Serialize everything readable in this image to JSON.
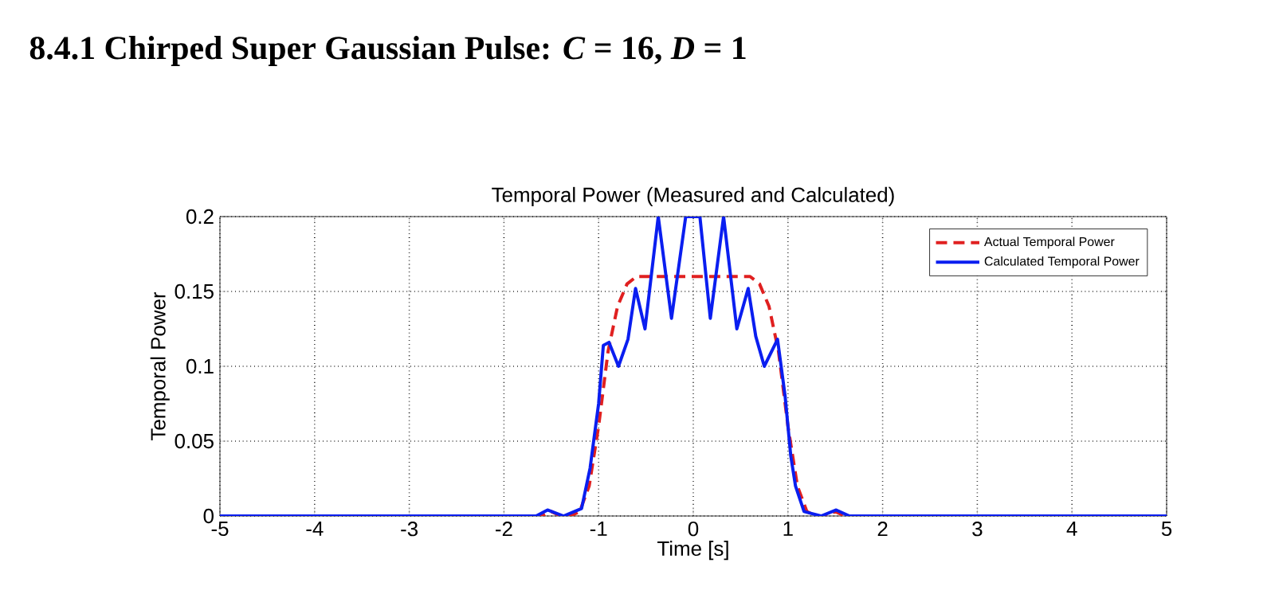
{
  "chart_data": {
    "type": "line",
    "title": "8.4.1 Chirped Super Gaussian Pulse: *C* = 16, *D* = 1",
    "subtitle": "Temporal Power (Measured and Calculated)",
    "xlabel": "Time [s]",
    "ylabel": "Temporal Power",
    "xlim": [
      -5,
      5
    ],
    "xticks": [
      -5,
      -4,
      -3,
      -2,
      -1,
      0,
      1,
      2,
      3,
      4,
      5
    ],
    "ylim": [
      0,
      0.2
    ],
    "yticks": [
      0,
      0.05,
      0.1,
      0.15,
      0.2
    ],
    "grid": true,
    "legend": "top right",
    "series": [
      {
        "name": "Actual Temporal Power",
        "color": "#e02020",
        "line_style": "dashed",
        "x": [
          -5,
          -1.6,
          -1.5,
          -1.4,
          -1.3,
          -1.2,
          -1.1,
          -1.0,
          -0.9,
          -0.8,
          -0.7,
          -0.6,
          0.6,
          0.7,
          0.8,
          0.9,
          1.0,
          1.1,
          1.2,
          1.3,
          1.4,
          1.5,
          1.6,
          5
        ],
        "values": [
          0,
          0,
          0.003,
          0,
          0,
          0.003,
          0.02,
          0.06,
          0.11,
          0.14,
          0.155,
          0.16,
          0.16,
          0.155,
          0.14,
          0.11,
          0.06,
          0.02,
          0.003,
          0,
          0,
          0.003,
          0,
          0
        ]
      },
      {
        "name": "Calculated Temporal Power",
        "color": "#0a1ef0",
        "line_style": "solid",
        "x": [
          -5,
          -1.66,
          -1.54,
          -1.37,
          -1.18,
          -1.09,
          -1.0,
          -0.95,
          -0.89,
          -0.79,
          -0.69,
          -0.61,
          -0.51,
          -0.37,
          -0.23,
          -0.08,
          0.07,
          0.18,
          0.32,
          0.46,
          0.58,
          0.66,
          0.75,
          0.89,
          0.97,
          1.03,
          1.08,
          1.17,
          1.35,
          1.51,
          1.65,
          5
        ],
        "values": [
          0,
          0,
          0.004,
          0,
          0.005,
          0.032,
          0.075,
          0.114,
          0.116,
          0.1,
          0.118,
          0.152,
          0.125,
          0.2,
          0.132,
          0.2,
          0.2,
          0.132,
          0.2,
          0.125,
          0.152,
          0.12,
          0.1,
          0.118,
          0.08,
          0.04,
          0.02,
          0.003,
          0,
          0.004,
          0,
          0
        ]
      }
    ]
  }
}
